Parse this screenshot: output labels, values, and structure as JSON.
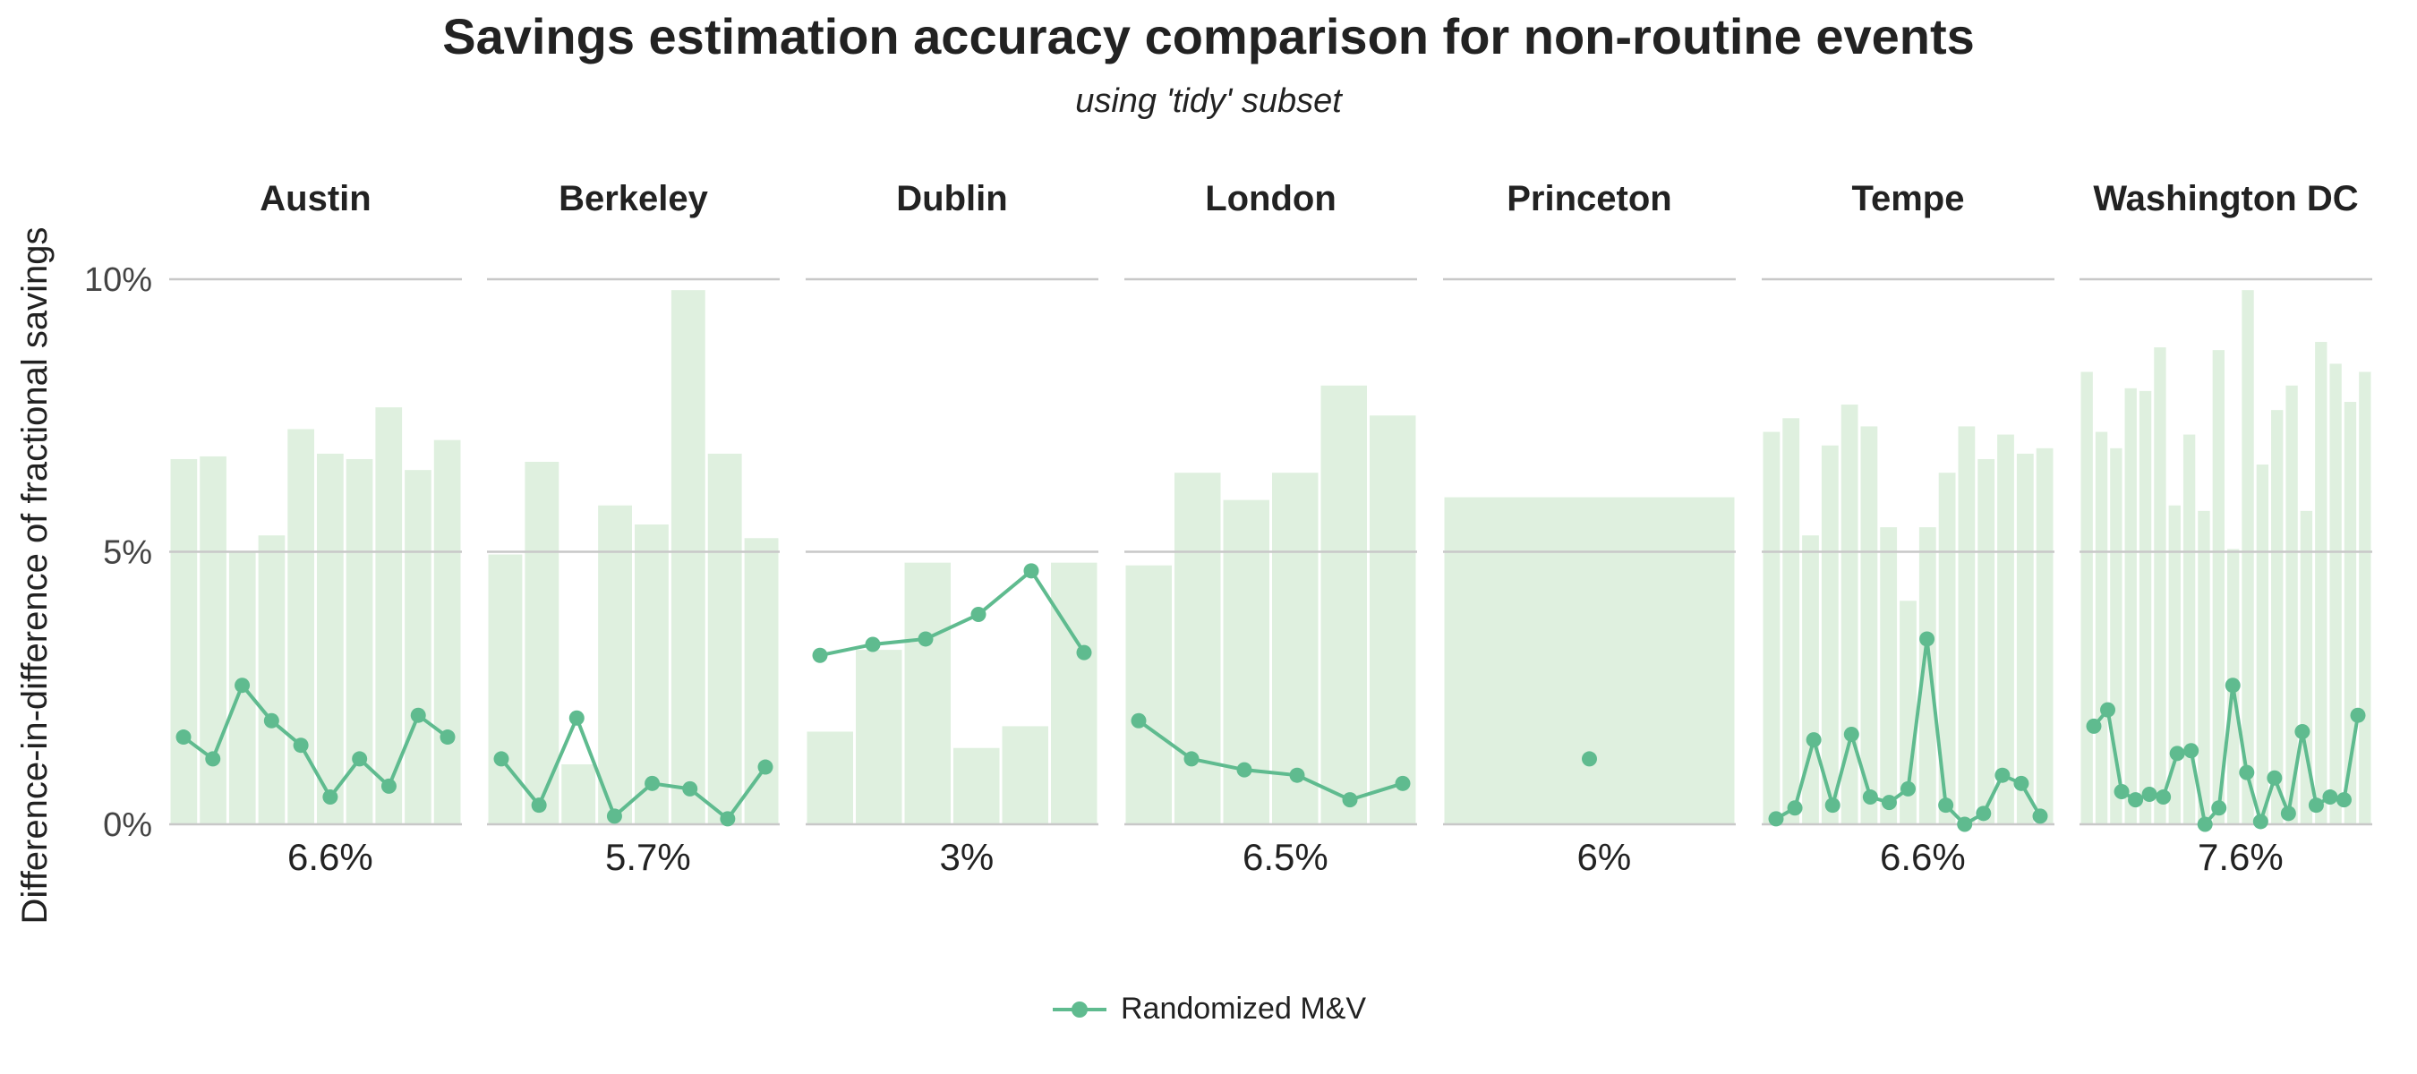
{
  "chart_data": {
    "type": "bar+line",
    "title": "Savings estimation accuracy comparison for non-routine events",
    "subtitle": "using 'tidy' subset",
    "ylabel": "Difference-in-difference of fractional savings",
    "ylim": [
      0,
      10
    ],
    "yticks": [
      0,
      5,
      10
    ],
    "ytick_labels": [
      "0%",
      "5%",
      "10%"
    ],
    "grid": true,
    "legend": {
      "position": "bottom-center",
      "entries": [
        "Randomized M&V"
      ]
    },
    "colors": {
      "bars": "#dff0df",
      "line": "#5fbb8f",
      "grid": "#c8c8c8",
      "text": "#222222"
    },
    "panels": [
      {
        "name": "Austin",
        "summary": "6.6%",
        "bars": [
          6.7,
          6.75,
          5.0,
          5.3,
          7.25,
          6.8,
          6.7,
          7.65,
          6.5,
          7.05
        ],
        "line": [
          1.6,
          1.2,
          2.55,
          1.9,
          1.45,
          0.5,
          1.2,
          0.7,
          2.0,
          1.6
        ]
      },
      {
        "name": "Berkeley",
        "summary": "5.7%",
        "bars": [
          4.95,
          6.65,
          1.1,
          5.85,
          5.5,
          9.8,
          6.8,
          5.25
        ],
        "line": [
          1.2,
          0.35,
          1.95,
          0.15,
          0.75,
          0.65,
          0.1,
          1.05
        ]
      },
      {
        "name": "Dublin",
        "summary": "3%",
        "bars": [
          1.7,
          3.2,
          4.8,
          1.4,
          1.8,
          4.8
        ],
        "line": [
          3.1,
          3.3,
          3.4,
          3.85,
          4.65,
          3.15
        ]
      },
      {
        "name": "London",
        "summary": "6.5%",
        "bars": [
          4.75,
          6.45,
          5.95,
          6.45,
          8.05,
          7.5
        ],
        "line": [
          1.9,
          1.2,
          1.0,
          0.9,
          0.45,
          0.75
        ]
      },
      {
        "name": "Princeton",
        "summary": "6%",
        "bars": [
          6.0
        ],
        "line": [
          1.2
        ]
      },
      {
        "name": "Tempe",
        "summary": "6.6%",
        "bars": [
          7.2,
          7.45,
          5.3,
          6.95,
          7.7,
          7.3,
          5.45,
          4.1,
          5.45,
          6.45,
          7.3,
          6.7,
          7.15,
          6.8,
          6.9
        ],
        "line": [
          0.1,
          0.3,
          1.55,
          0.35,
          1.65,
          0.5,
          0.4,
          0.65,
          3.4,
          0.35,
          0.0,
          0.2,
          0.9,
          0.75,
          0.15
        ]
      },
      {
        "name": "Washington DC",
        "summary": "7.6%",
        "bars": [
          8.3,
          7.2,
          6.9,
          8.0,
          7.95,
          8.75,
          5.85,
          7.15,
          5.75,
          8.7,
          5.05,
          9.8,
          6.6,
          7.6,
          8.05,
          5.75,
          8.85,
          8.45,
          7.75,
          8.3
        ],
        "line": [
          1.8,
          2.1,
          0.6,
          0.45,
          0.55,
          0.5,
          1.3,
          1.35,
          0.0,
          0.3,
          2.55,
          0.95,
          0.05,
          0.85,
          0.2,
          1.7,
          0.35,
          0.5,
          0.45,
          2.0
        ]
      }
    ]
  }
}
